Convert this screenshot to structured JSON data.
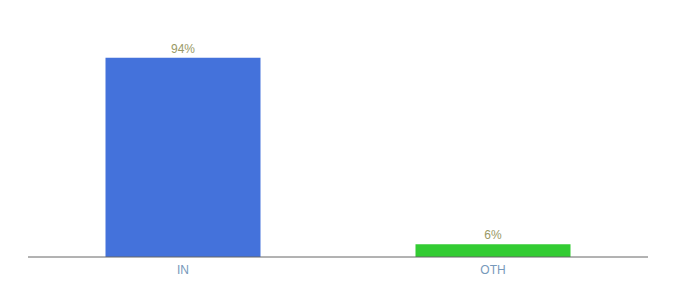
{
  "chart_data": {
    "type": "bar",
    "categories": [
      "IN",
      "OTH"
    ],
    "values": [
      94,
      6
    ],
    "value_labels": [
      "94%",
      "6%"
    ],
    "colors": [
      "#4472db",
      "#33cc33"
    ],
    "ylim": [
      0,
      108
    ],
    "data_labels": true,
    "tick_labels": "x",
    "grid": false
  }
}
